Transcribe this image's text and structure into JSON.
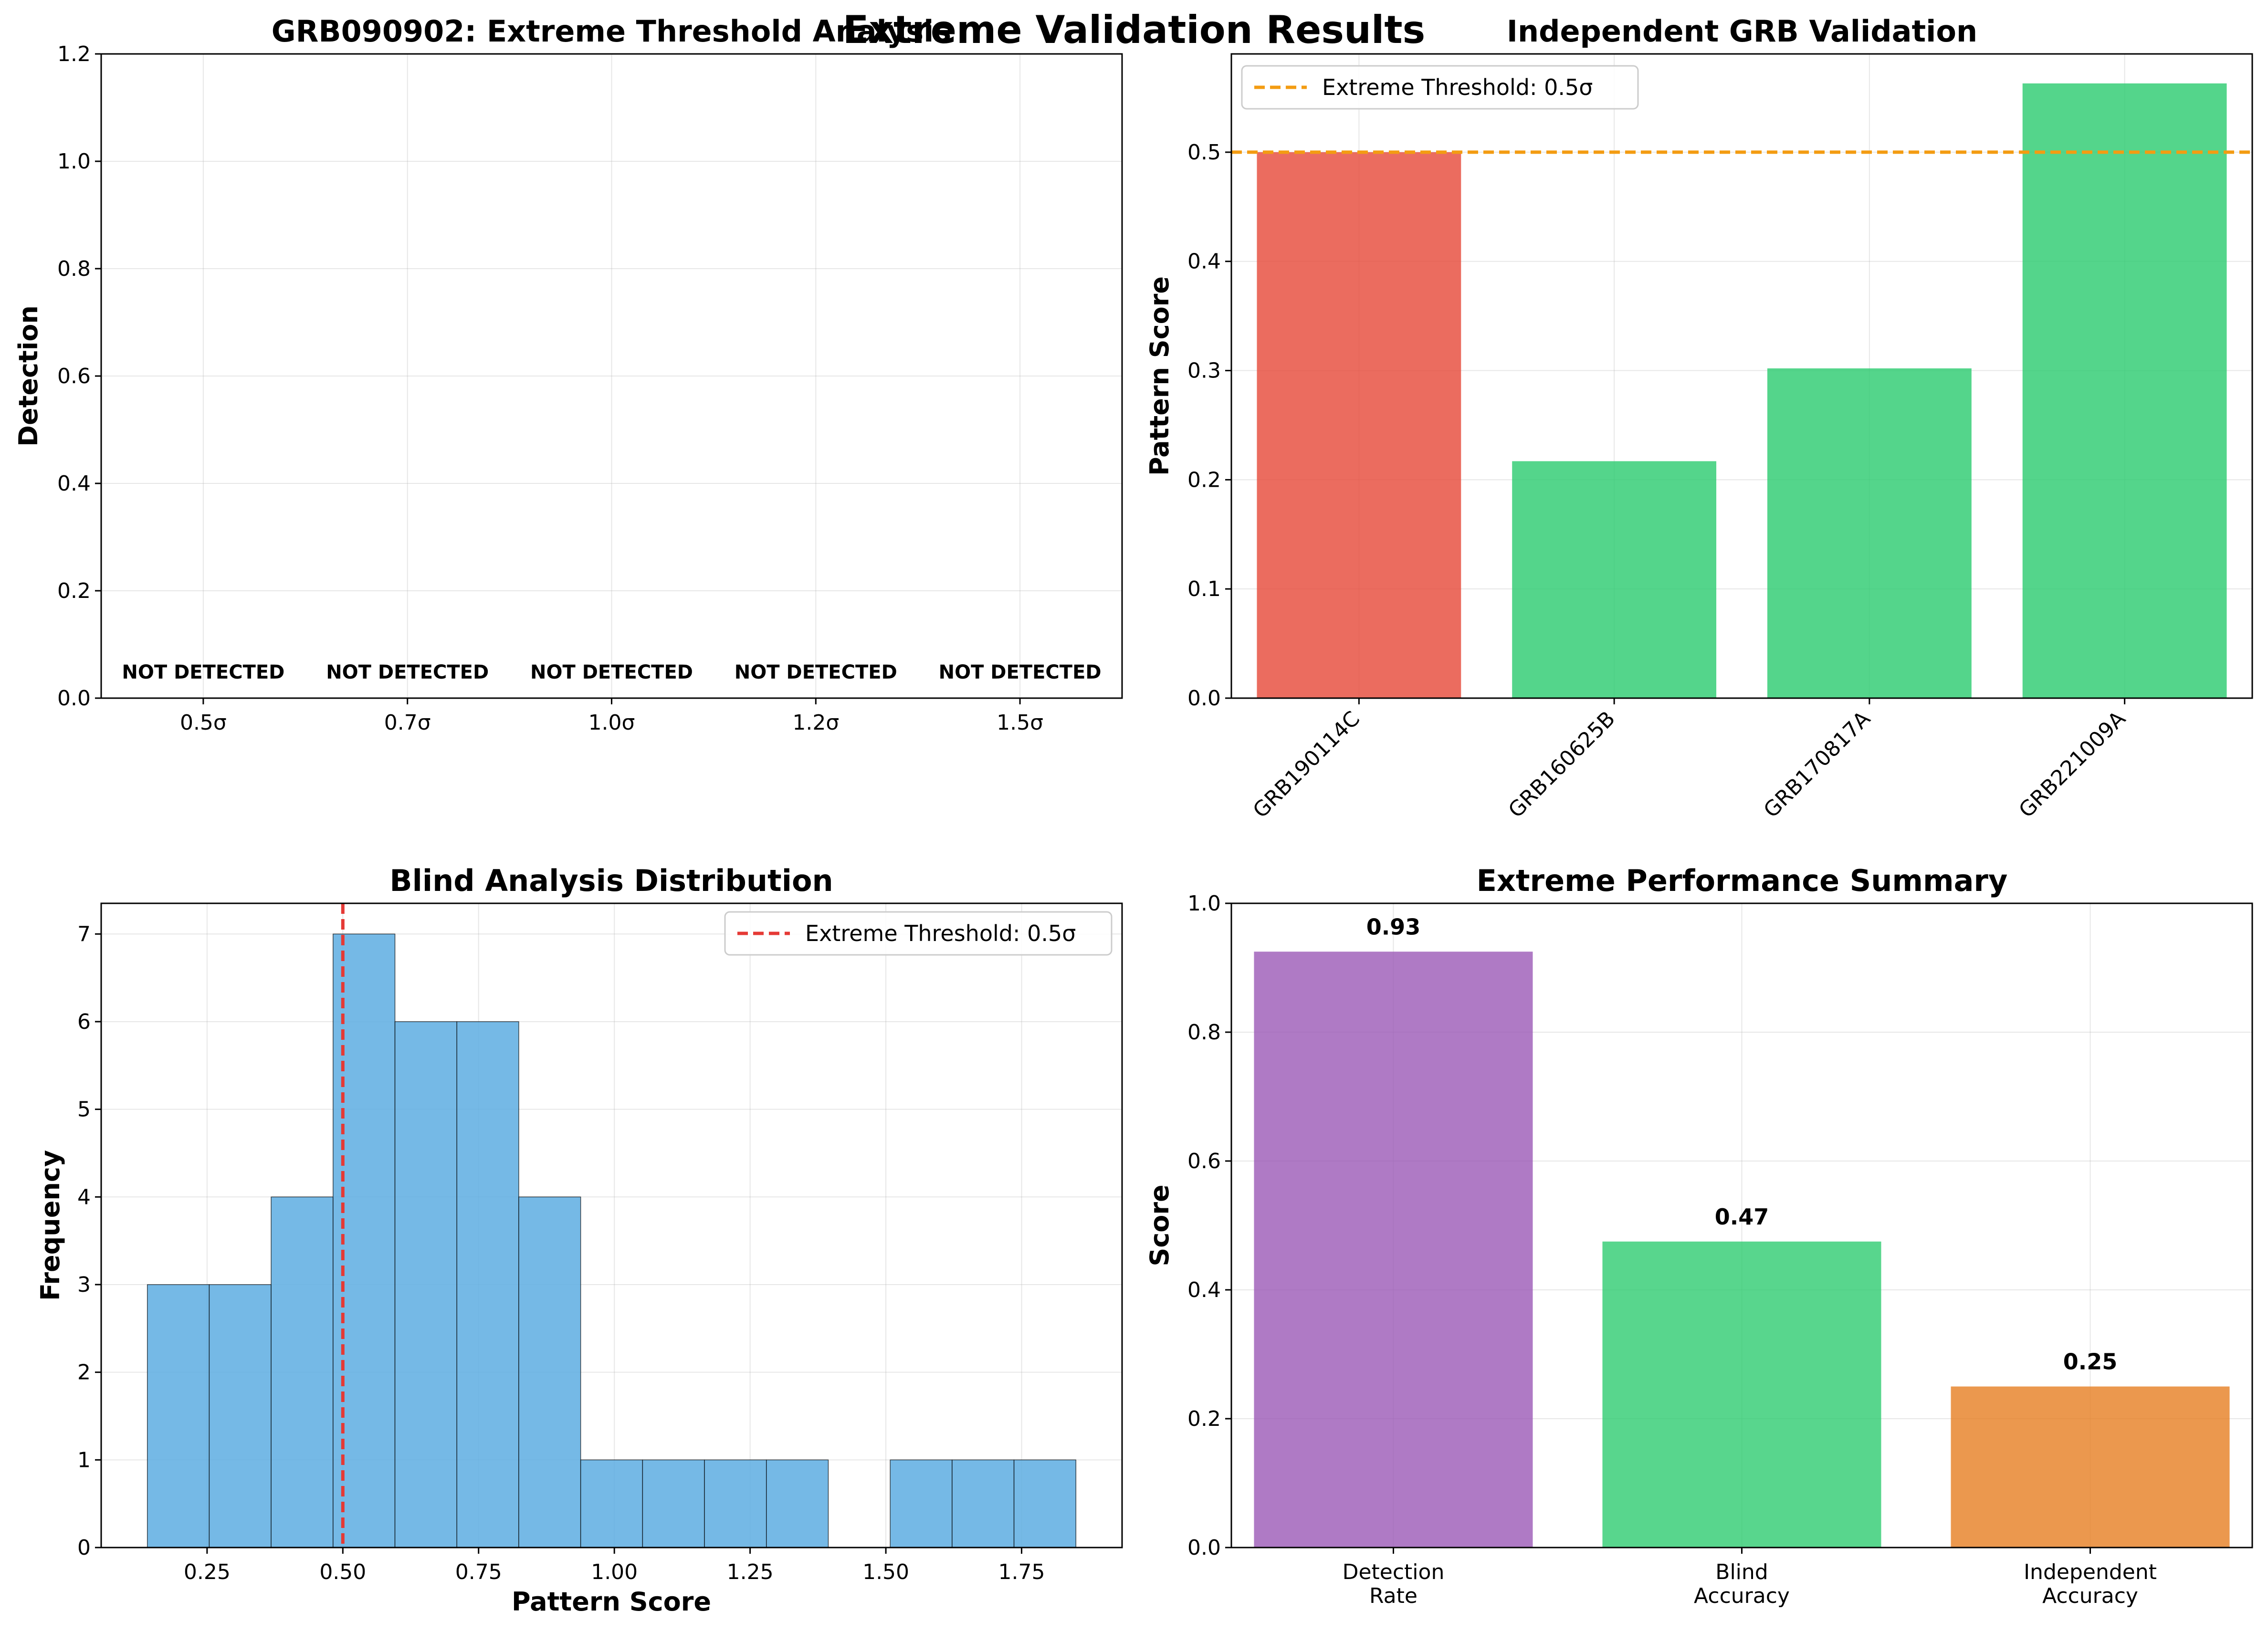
{
  "figure": {
    "suptitle": "Extreme Validation Results"
  },
  "colors": {
    "red": "#e74c3c",
    "green": "#2ecc71",
    "blue": "#5dade2",
    "purple": "#9b59b6",
    "orange": "#e67e22",
    "threshold_orange": "#f39c12",
    "threshold_red": "#e53935"
  },
  "chart_data": [
    {
      "id": "threshold",
      "type": "bar",
      "title": "GRB090902: Extreme Threshold Analysis",
      "xlabel": "",
      "ylabel": "Detection",
      "categories": [
        "0.5σ",
        "0.7σ",
        "1.0σ",
        "1.2σ",
        "1.5σ"
      ],
      "values": [
        0,
        0,
        0,
        0,
        0
      ],
      "annotations": [
        "NOT DETECTED",
        "NOT DETECTED",
        "NOT DETECTED",
        "NOT DETECTED",
        "NOT DETECTED"
      ],
      "ylim": [
        0,
        1.2
      ],
      "yticks": [
        "0.0",
        "0.2",
        "0.4",
        "0.6",
        "0.8",
        "1.0",
        "1.2"
      ],
      "grid": true
    },
    {
      "id": "independent",
      "type": "bar",
      "title": "Independent GRB Validation",
      "xlabel": "",
      "ylabel": "Pattern Score",
      "categories": [
        "GRB190114C",
        "GRB160625B",
        "GRB170817A",
        "GRB221009A"
      ],
      "values": [
        0.5,
        0.217,
        0.302,
        0.563
      ],
      "bar_colors": [
        "red",
        "green",
        "green",
        "green"
      ],
      "threshold": {
        "value": 0.5,
        "label": "Extreme Threshold: 0.5σ",
        "style": "dashed",
        "color": "threshold_orange"
      },
      "ylim": [
        0,
        0.59
      ],
      "yticks": [
        "0.0",
        "0.1",
        "0.2",
        "0.3",
        "0.4",
        "0.5"
      ],
      "legend": "top-left",
      "grid": true
    },
    {
      "id": "blind",
      "type": "bar",
      "title": "Blind Analysis Distribution",
      "xlabel": "Pattern Score",
      "ylabel": "Frequency",
      "bin_edges": [
        0.14,
        0.254,
        0.368,
        0.482,
        0.596,
        0.71,
        0.824,
        0.938,
        1.052,
        1.166,
        1.28,
        1.394,
        1.508,
        1.622,
        1.736,
        1.85
      ],
      "counts": [
        3,
        3,
        4,
        7,
        6,
        6,
        4,
        1,
        1,
        1,
        1,
        0,
        1,
        1,
        1
      ],
      "threshold": {
        "value": 0.5,
        "label": "Extreme Threshold: 0.5σ",
        "style": "dashed",
        "color": "threshold_red"
      },
      "xlim": [
        0.055,
        1.935
      ],
      "ylim": [
        0,
        7.35
      ],
      "xticks": [
        "0.25",
        "0.50",
        "0.75",
        "1.00",
        "1.25",
        "1.50",
        "1.75"
      ],
      "yticks": [
        "0",
        "1",
        "2",
        "3",
        "4",
        "5",
        "6",
        "7"
      ],
      "legend": "top-right",
      "grid": true
    },
    {
      "id": "summary",
      "type": "bar",
      "title": "Extreme Performance Summary",
      "xlabel": "",
      "ylabel": "Score",
      "categories": [
        "Detection Rate",
        "Blind Accuracy",
        "Independent Accuracy"
      ],
      "values": [
        0.925,
        0.475,
        0.25
      ],
      "value_labels": [
        "0.93",
        "0.47",
        "0.25"
      ],
      "bar_colors": [
        "purple",
        "green",
        "orange"
      ],
      "ylim": [
        0,
        1.0
      ],
      "yticks": [
        "0.0",
        "0.2",
        "0.4",
        "0.6",
        "0.8",
        "1.0"
      ],
      "grid": true
    }
  ]
}
